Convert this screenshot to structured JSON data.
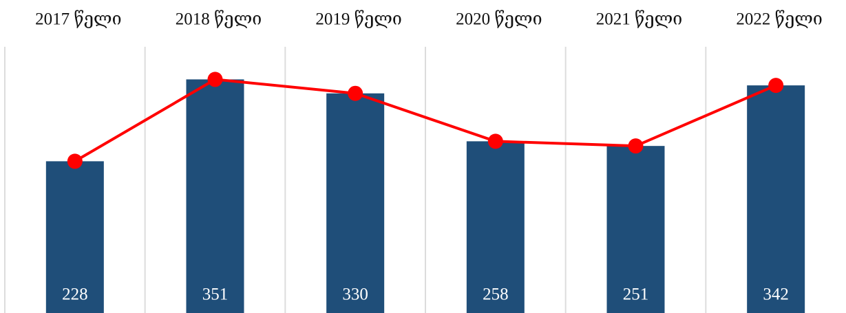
{
  "chart_data": {
    "type": "bar",
    "categories": [
      "2017 წელი",
      "2018 წელი",
      "2019 წელი",
      "2020 წელი",
      "2021 წელი",
      "2022 წელი"
    ],
    "values": [
      228,
      351,
      330,
      258,
      251,
      342
    ],
    "color": "#1f4e79",
    "line_color": "#ff0000",
    "ylim": [
      0,
      400
    ],
    "grid": true
  }
}
